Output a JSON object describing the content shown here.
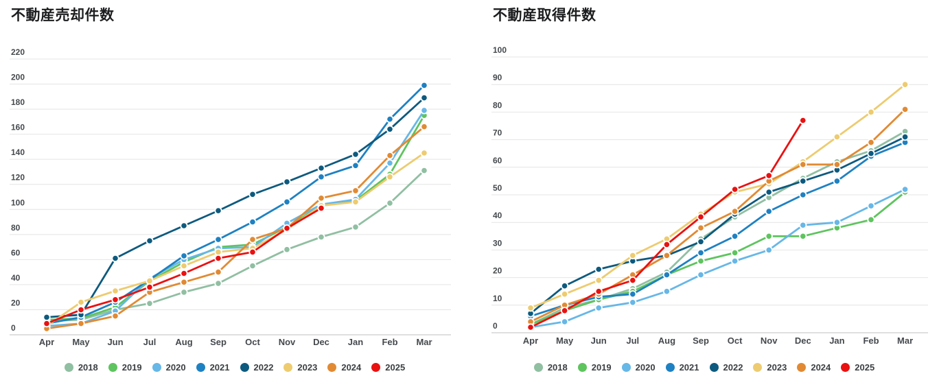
{
  "page": {
    "background": "#ffffff"
  },
  "chart_data": [
    {
      "type": "line",
      "title": "不動産売却件数",
      "categories": [
        "Apr",
        "May",
        "Jun",
        "Jul",
        "Aug",
        "Sep",
        "Oct",
        "Nov",
        "Dec",
        "Jan",
        "Feb",
        "Mar"
      ],
      "ylabel": "",
      "xlabel": "",
      "ylim": [
        0,
        220
      ],
      "ytick_step": 20,
      "grid": "horizontal",
      "legend_position": "bottom",
      "series": [
        {
          "name": "2018",
          "color": "#90bfa2",
          "values": [
            11,
            12,
            20,
            25,
            34,
            41,
            55,
            68,
            78,
            86,
            105,
            131
          ]
        },
        {
          "name": "2019",
          "color": "#5ec45e",
          "values": [
            12,
            13,
            22,
            43,
            58,
            70,
            72,
            86,
            103,
            107,
            128,
            175
          ]
        },
        {
          "name": "2020",
          "color": "#67b7e7",
          "values": [
            7,
            9,
            19,
            45,
            60,
            69,
            70,
            89,
            104,
            108,
            137,
            179
          ]
        },
        {
          "name": "2021",
          "color": "#1e81c2",
          "values": [
            9,
            14,
            26,
            44,
            63,
            76,
            90,
            106,
            126,
            135,
            172,
            199
          ]
        },
        {
          "name": "2022",
          "color": "#0d5a7e",
          "values": [
            14,
            16,
            61,
            75,
            87,
            99,
            112,
            122,
            133,
            144,
            164,
            189
          ]
        },
        {
          "name": "2023",
          "color": "#edcb6f",
          "values": [
            7,
            26,
            35,
            43,
            55,
            66,
            69,
            84,
            103,
            106,
            126,
            145
          ]
        },
        {
          "name": "2024",
          "color": "#e18a33",
          "values": [
            5,
            9,
            15,
            34,
            42,
            50,
            76,
            85,
            109,
            115,
            143,
            166
          ]
        },
        {
          "name": "2025",
          "color": "#ea1111",
          "values": [
            9,
            20,
            28,
            38,
            49,
            61,
            66,
            85,
            101
          ]
        }
      ]
    },
    {
      "type": "line",
      "title": "不動産取得件数",
      "categories": [
        "Apr",
        "May",
        "Jun",
        "Jul",
        "Aug",
        "Sep",
        "Oct",
        "Nov",
        "Dec",
        "Jan",
        "Feb",
        "Mar"
      ],
      "ylabel": "",
      "xlabel": "",
      "ylim": [
        0,
        100
      ],
      "ytick_step": 10,
      "grid": "horizontal",
      "legend_position": "bottom",
      "series": [
        {
          "name": "2018",
          "color": "#90bfa2",
          "values": [
            3,
            9,
            12,
            16,
            22,
            34,
            42,
            49,
            56,
            62,
            66,
            73
          ]
        },
        {
          "name": "2019",
          "color": "#5ec45e",
          "values": [
            3,
            8,
            12,
            15,
            21,
            26,
            29,
            35,
            35,
            38,
            41,
            51
          ]
        },
        {
          "name": "2020",
          "color": "#67b7e7",
          "values": [
            2,
            4,
            9,
            11,
            15,
            21,
            26,
            30,
            39,
            40,
            46,
            52
          ]
        },
        {
          "name": "2021",
          "color": "#1e81c2",
          "values": [
            6,
            10,
            13,
            14,
            21,
            29,
            35,
            44,
            50,
            55,
            64,
            69
          ]
        },
        {
          "name": "2022",
          "color": "#0d5a7e",
          "values": [
            7,
            17,
            23,
            26,
            28,
            33,
            43,
            51,
            55,
            59,
            65,
            71
          ]
        },
        {
          "name": "2023",
          "color": "#edcb6f",
          "values": [
            9,
            14,
            19,
            28,
            34,
            43,
            51,
            54,
            62,
            71,
            80,
            90
          ]
        },
        {
          "name": "2024",
          "color": "#e18a33",
          "values": [
            4,
            10,
            14,
            21,
            28,
            38,
            44,
            55,
            61,
            61,
            69,
            81
          ]
        },
        {
          "name": "2025",
          "color": "#ea1111",
          "values": [
            2,
            8,
            15,
            19,
            32,
            42,
            52,
            57,
            77
          ]
        }
      ]
    }
  ],
  "style": {
    "gridline_color": "#e4e4e4",
    "baseline_color": "#bfbfbf",
    "point_ring_color": "#ffffff"
  }
}
